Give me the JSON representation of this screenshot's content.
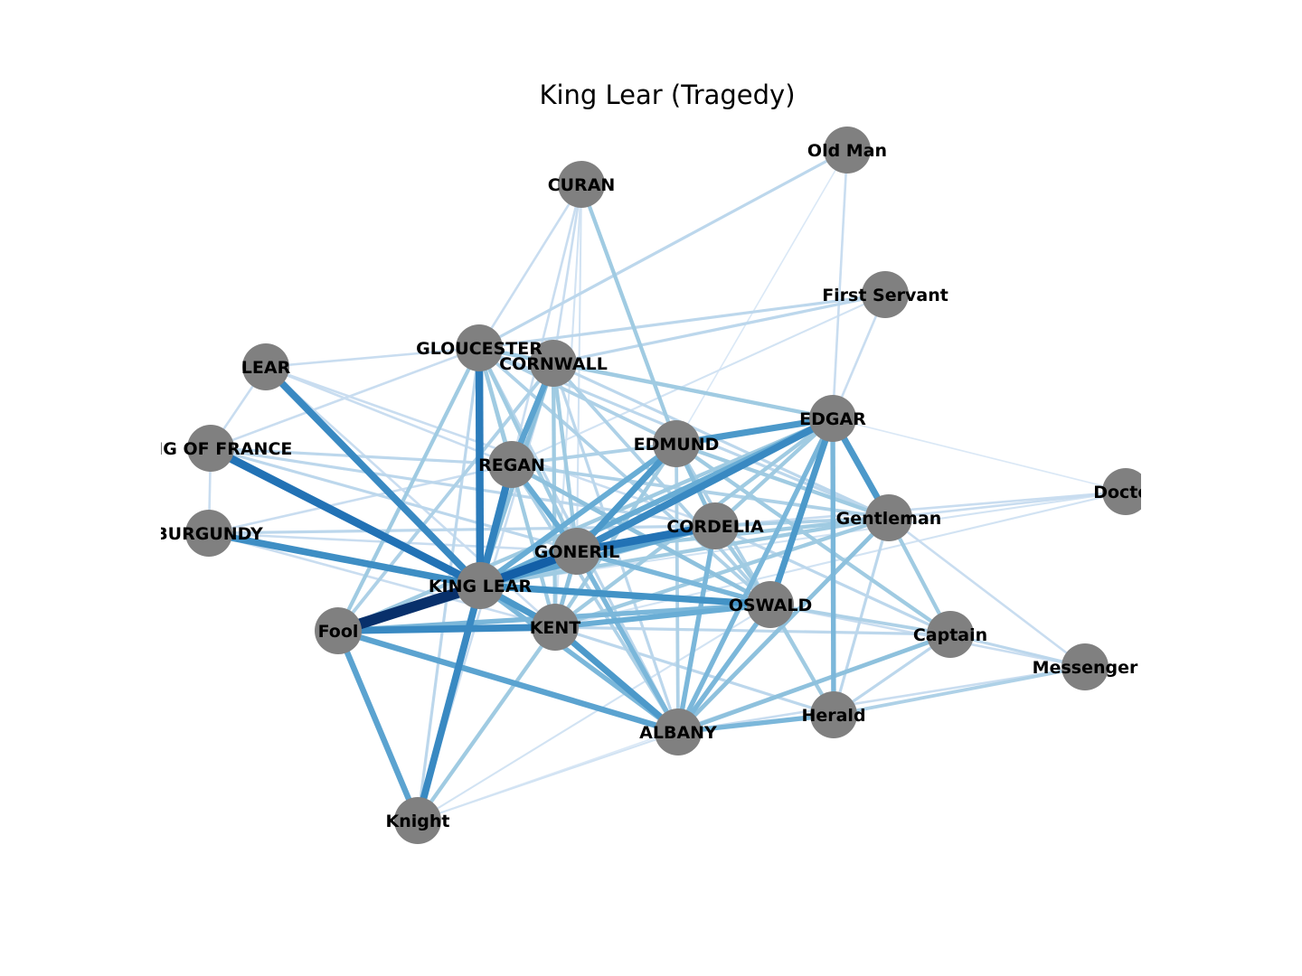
{
  "title": "King Lear (Tragedy)",
  "node_color": "#808080",
  "edge_colormap": [
    "#f7fbff",
    "#deebf7",
    "#c6dbef",
    "#9ecae1",
    "#6baed6",
    "#4292c6",
    "#2171b5",
    "#08519c",
    "#08306b"
  ],
  "nodes": [
    {
      "id": "OLD_MAN",
      "label": "Old Man"
    },
    {
      "id": "CURAN",
      "label": "CURAN"
    },
    {
      "id": "FIRST_SERVANT",
      "label": "First Servant"
    },
    {
      "id": "GLOUCESTER",
      "label": "GLOUCESTER"
    },
    {
      "id": "CORNWALL",
      "label": "CORNWALL"
    },
    {
      "id": "LEAR",
      "label": "LEAR"
    },
    {
      "id": "EDGAR",
      "label": "EDGAR"
    },
    {
      "id": "EDMUND",
      "label": "EDMUND"
    },
    {
      "id": "KING_OF_FRANCE",
      "label": "KING OF FRANCE"
    },
    {
      "id": "REGAN",
      "label": "REGAN"
    },
    {
      "id": "DOCTOR",
      "label": "Doctor"
    },
    {
      "id": "BURGUNDY",
      "label": "BURGUNDY"
    },
    {
      "id": "CORDELIA",
      "label": "CORDELIA"
    },
    {
      "id": "GENTLEMAN",
      "label": "Gentleman"
    },
    {
      "id": "GONERIL",
      "label": "GONERIL"
    },
    {
      "id": "KING_LEAR",
      "label": "KING LEAR"
    },
    {
      "id": "OSWALD",
      "label": "OSWALD"
    },
    {
      "id": "FOOL",
      "label": "Fool"
    },
    {
      "id": "KENT",
      "label": "KENT"
    },
    {
      "id": "CAPTAIN",
      "label": "Captain"
    },
    {
      "id": "MESSENGER",
      "label": "Messenger"
    },
    {
      "id": "HERALD",
      "label": "Herald"
    },
    {
      "id": "ALBANY",
      "label": "ALBANY"
    },
    {
      "id": "KNIGHT",
      "label": "Knight"
    }
  ],
  "edges": [
    {
      "source": "KING_LEAR",
      "target": "FOOL",
      "weight": 1.0
    },
    {
      "source": "KING_LEAR",
      "target": "GONERIL",
      "weight": 0.8
    },
    {
      "source": "KING_LEAR",
      "target": "KING_OF_FRANCE",
      "weight": 0.72
    },
    {
      "source": "KING_LEAR",
      "target": "GLOUCESTER",
      "weight": 0.68
    },
    {
      "source": "KING_LEAR",
      "target": "REGAN",
      "weight": 0.65
    },
    {
      "source": "KING_LEAR",
      "target": "LEAR",
      "weight": 0.62
    },
    {
      "source": "KING_LEAR",
      "target": "KNIGHT",
      "weight": 0.62
    },
    {
      "source": "KING_LEAR",
      "target": "BURGUNDY",
      "weight": 0.6
    },
    {
      "source": "KING_LEAR",
      "target": "OSWALD",
      "weight": 0.58
    },
    {
      "source": "KING_LEAR",
      "target": "KENT",
      "weight": 0.55
    },
    {
      "source": "KING_LEAR",
      "target": "CORDELIA",
      "weight": 0.5
    },
    {
      "source": "KING_LEAR",
      "target": "EDMUND",
      "weight": 0.45
    },
    {
      "source": "KING_LEAR",
      "target": "EDGAR",
      "weight": 0.45
    },
    {
      "source": "KING_LEAR",
      "target": "ALBANY",
      "weight": 0.4
    },
    {
      "source": "KING_LEAR",
      "target": "CORNWALL",
      "weight": 0.35
    },
    {
      "source": "KING_LEAR",
      "target": "GENTLEMAN",
      "weight": 0.3
    },
    {
      "source": "GONERIL",
      "target": "CORDELIA",
      "weight": 0.72
    },
    {
      "source": "GONERIL",
      "target": "EDGAR",
      "weight": 0.62
    },
    {
      "source": "GONERIL",
      "target": "EDMUND",
      "weight": 0.55
    },
    {
      "source": "GONERIL",
      "target": "REGAN",
      "weight": 0.45
    },
    {
      "source": "GONERIL",
      "target": "ALBANY",
      "weight": 0.4
    },
    {
      "source": "GONERIL",
      "target": "OSWALD",
      "weight": 0.4
    },
    {
      "source": "GONERIL",
      "target": "KENT",
      "weight": 0.35
    },
    {
      "source": "GONERIL",
      "target": "GLOUCESTER",
      "weight": 0.3
    },
    {
      "source": "GONERIL",
      "target": "CORNWALL",
      "weight": 0.3
    },
    {
      "source": "GONERIL",
      "target": "GENTLEMAN",
      "weight": 0.3
    },
    {
      "source": "GONERIL",
      "target": "FOOL",
      "weight": 0.3
    },
    {
      "source": "FOOL",
      "target": "KENT",
      "weight": 0.62
    },
    {
      "source": "FOOL",
      "target": "ALBANY",
      "weight": 0.5
    },
    {
      "source": "FOOL",
      "target": "KNIGHT",
      "weight": 0.5
    },
    {
      "source": "FOOL",
      "target": "OSWALD",
      "weight": 0.4
    },
    {
      "source": "FOOL",
      "target": "GLOUCESTER",
      "weight": 0.3
    },
    {
      "source": "FOOL",
      "target": "EDGAR",
      "weight": 0.3
    },
    {
      "source": "FOOL",
      "target": "CORDELIA",
      "weight": 0.25
    },
    {
      "source": "FOOL",
      "target": "CORNWALL",
      "weight": 0.25
    },
    {
      "source": "KENT",
      "target": "OSWALD",
      "weight": 0.45
    },
    {
      "source": "KENT",
      "target": "ALBANY",
      "weight": 0.55
    },
    {
      "source": "KENT",
      "target": "GLOUCESTER",
      "weight": 0.3
    },
    {
      "source": "KENT",
      "target": "CORNWALL",
      "weight": 0.3
    },
    {
      "source": "KENT",
      "target": "EDMUND",
      "weight": 0.3
    },
    {
      "source": "KENT",
      "target": "EDGAR",
      "weight": 0.3
    },
    {
      "source": "KENT",
      "target": "GENTLEMAN",
      "weight": 0.3
    },
    {
      "source": "KENT",
      "target": "CAPTAIN",
      "weight": 0.2
    },
    {
      "source": "KENT",
      "target": "HERALD",
      "weight": 0.2
    },
    {
      "source": "KENT",
      "target": "KNIGHT",
      "weight": 0.3
    },
    {
      "source": "REGAN",
      "target": "CORNWALL",
      "weight": 0.5
    },
    {
      "source": "REGAN",
      "target": "GLOUCESTER",
      "weight": 0.3
    },
    {
      "source": "REGAN",
      "target": "OSWALD",
      "weight": 0.35
    },
    {
      "source": "REGAN",
      "target": "EDMUND",
      "weight": 0.25
    },
    {
      "source": "REGAN",
      "target": "ALBANY",
      "weight": 0.25
    },
    {
      "source": "REGAN",
      "target": "GENTLEMAN",
      "weight": 0.25
    },
    {
      "source": "REGAN",
      "target": "KING_OF_FRANCE",
      "weight": 0.2
    },
    {
      "source": "EDGAR",
      "target": "EDMUND",
      "weight": 0.55
    },
    {
      "source": "EDGAR",
      "target": "GENTLEMAN",
      "weight": 0.55
    },
    {
      "source": "EDGAR",
      "target": "OSWALD",
      "weight": 0.55
    },
    {
      "source": "EDGAR",
      "target": "HERALD",
      "weight": 0.4
    },
    {
      "source": "EDGAR",
      "target": "ALBANY",
      "weight": 0.4
    },
    {
      "source": "EDGAR",
      "target": "GLOUCESTER",
      "weight": 0.3
    },
    {
      "source": "EDGAR",
      "target": "CORNWALL",
      "weight": 0.25
    },
    {
      "source": "EDGAR",
      "target": "FIRST_SERVANT",
      "weight": 0.15
    },
    {
      "source": "EDGAR",
      "target": "OLD_MAN",
      "weight": 0.15
    },
    {
      "source": "EDGAR",
      "target": "CORDELIA",
      "weight": 0.3
    },
    {
      "source": "EDGAR",
      "target": "DOCTOR",
      "weight": 0.05
    },
    {
      "source": "EDMUND",
      "target": "CORDELIA",
      "weight": 0.35
    },
    {
      "source": "EDMUND",
      "target": "CURAN",
      "weight": 0.3
    },
    {
      "source": "EDMUND",
      "target": "GENTLEMAN",
      "weight": 0.3
    },
    {
      "source": "EDMUND",
      "target": "CAPTAIN",
      "weight": 0.3
    },
    {
      "source": "EDMUND",
      "target": "GLOUCESTER",
      "weight": 0.25
    },
    {
      "source": "EDMUND",
      "target": "ALBANY",
      "weight": 0.25
    },
    {
      "source": "EDMUND",
      "target": "HERALD",
      "weight": 0.25
    },
    {
      "source": "CORDELIA",
      "target": "ALBANY",
      "weight": 0.4
    },
    {
      "source": "CORDELIA",
      "target": "OSWALD",
      "weight": 0.3
    },
    {
      "source": "CORDELIA",
      "target": "GENTLEMAN",
      "weight": 0.25
    },
    {
      "source": "CORDELIA",
      "target": "CAPTAIN",
      "weight": 0.2
    },
    {
      "source": "CORDELIA",
      "target": "KING_OF_FRANCE",
      "weight": 0.2
    },
    {
      "source": "CORDELIA",
      "target": "BURGUNDY",
      "weight": 0.2
    },
    {
      "source": "OSWALD",
      "target": "ALBANY",
      "weight": 0.4
    },
    {
      "source": "OSWALD",
      "target": "HERALD",
      "weight": 0.3
    },
    {
      "source": "OSWALD",
      "target": "CAPTAIN",
      "weight": 0.25
    },
    {
      "source": "OSWALD",
      "target": "GLOUCESTER",
      "weight": 0.25
    },
    {
      "source": "OSWALD",
      "target": "CORNWALL",
      "weight": 0.25
    },
    {
      "source": "OSWALD",
      "target": "KING_OF_FRANCE",
      "weight": 0.2
    },
    {
      "source": "OSWALD",
      "target": "MESSENGER",
      "weight": 0.15
    },
    {
      "source": "ALBANY",
      "target": "HERALD",
      "weight": 0.4
    },
    {
      "source": "ALBANY",
      "target": "CAPTAIN",
      "weight": 0.35
    },
    {
      "source": "ALBANY",
      "target": "GENTLEMAN",
      "weight": 0.35
    },
    {
      "source": "ALBANY",
      "target": "GLOUCESTER",
      "weight": 0.2
    },
    {
      "source": "ALBANY",
      "target": "CORNWALL",
      "weight": 0.2
    },
    {
      "source": "ALBANY",
      "target": "MESSENGER",
      "weight": 0.15
    },
    {
      "source": "CAPTAIN",
      "target": "GENTLEMAN",
      "weight": 0.3
    },
    {
      "source": "CAPTAIN",
      "target": "MESSENGER",
      "weight": 0.2
    },
    {
      "source": "CAPTAIN",
      "target": "HERALD",
      "weight": 0.2
    },
    {
      "source": "HERALD",
      "target": "MESSENGER",
      "weight": 0.25
    },
    {
      "source": "HERALD",
      "target": "GENTLEMAN",
      "weight": 0.2
    },
    {
      "source": "GENTLEMAN",
      "target": "DOCTOR",
      "weight": 0.15
    },
    {
      "source": "GENTLEMAN",
      "target": "MESSENGER",
      "weight": 0.15
    },
    {
      "source": "GENTLEMAN",
      "target": "GLOUCESTER",
      "weight": 0.2
    },
    {
      "source": "GENTLEMAN",
      "target": "CORNWALL",
      "weight": 0.2
    },
    {
      "source": "GLOUCESTER",
      "target": "CORNWALL",
      "weight": 0.3
    },
    {
      "source": "GLOUCESTER",
      "target": "OLD_MAN",
      "weight": 0.2
    },
    {
      "source": "GLOUCESTER",
      "target": "FIRST_SERVANT",
      "weight": 0.2
    },
    {
      "source": "GLOUCESTER",
      "target": "CURAN",
      "weight": 0.15
    },
    {
      "source": "GLOUCESTER",
      "target": "LEAR",
      "weight": 0.15
    },
    {
      "source": "GLOUCESTER",
      "target": "KING_OF_FRANCE",
      "weight": 0.15
    },
    {
      "source": "GLOUCESTER",
      "target": "KNIGHT",
      "weight": 0.2
    },
    {
      "source": "CORNWALL",
      "target": "FIRST_SERVANT",
      "weight": 0.2
    },
    {
      "source": "CORNWALL",
      "target": "CURAN",
      "weight": 0.15
    },
    {
      "source": "CORNWALL",
      "target": "KNIGHT",
      "weight": 0.15
    },
    {
      "source": "CURAN",
      "target": "REGAN",
      "weight": 0.15
    },
    {
      "source": "CURAN",
      "target": "GONERIL",
      "weight": 0.1
    },
    {
      "source": "CURAN",
      "target": "KENT",
      "weight": 0.1
    },
    {
      "source": "LEAR",
      "target": "KING_OF_FRANCE",
      "weight": 0.15
    },
    {
      "source": "LEAR",
      "target": "CORDELIA",
      "weight": 0.15
    },
    {
      "source": "LEAR",
      "target": "REGAN",
      "weight": 0.15
    },
    {
      "source": "LEAR",
      "target": "KENT",
      "weight": 0.15
    },
    {
      "source": "KING_OF_FRANCE",
      "target": "BURGUNDY",
      "weight": 0.15
    },
    {
      "source": "KING_OF_FRANCE",
      "target": "KENT",
      "weight": 0.2
    },
    {
      "source": "BURGUNDY",
      "target": "KENT",
      "weight": 0.15
    },
    {
      "source": "BURGUNDY",
      "target": "GONERIL",
      "weight": 0.15
    },
    {
      "source": "BURGUNDY",
      "target": "REGAN",
      "weight": 0.15
    },
    {
      "source": "FIRST_SERVANT",
      "target": "REGAN",
      "weight": 0.1
    },
    {
      "source": "OLD_MAN",
      "target": "EDMUND",
      "weight": 0.05
    },
    {
      "source": "DOCTOR",
      "target": "CORDELIA",
      "weight": 0.15
    },
    {
      "source": "DOCTOR",
      "target": "KENT",
      "weight": 0.1
    },
    {
      "source": "DOCTOR",
      "target": "KING_LEAR",
      "weight": 0.1
    },
    {
      "source": "KNIGHT",
      "target": "ALBANY",
      "weight": 0.1
    },
    {
      "source": "KNIGHT",
      "target": "OSWALD",
      "weight": 0.1
    },
    {
      "source": "KNIGHT",
      "target": "CAPTAIN",
      "weight": 0.05
    }
  ]
}
